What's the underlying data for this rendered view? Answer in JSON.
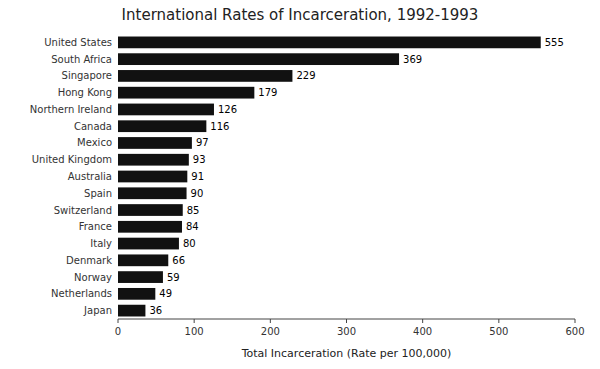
{
  "chart_data": {
    "type": "bar",
    "orientation": "horizontal",
    "title": "International Rates of Incarceration, 1992-1993",
    "xlabel": "Total Incarceration (Rate per 100,000)",
    "categories": [
      "Japan",
      "Netherlands",
      "Norway",
      "Denmark",
      "Italy",
      "France",
      "Switzerland",
      "Spain",
      "Australia",
      "United Kingdom",
      "Mexico",
      "Canada",
      "Northern Ireland",
      "Hong Kong",
      "Singapore",
      "South Africa",
      "United States"
    ],
    "values": [
      36,
      49,
      59,
      66,
      80,
      84,
      85,
      90,
      91,
      93,
      97,
      116,
      126,
      179,
      229,
      369,
      555
    ],
    "color": "#111111",
    "xlim": [
      0,
      600
    ],
    "xticks": [
      0,
      100,
      200,
      300,
      400,
      500,
      600
    ],
    "data_labels": true,
    "grid": false
  }
}
